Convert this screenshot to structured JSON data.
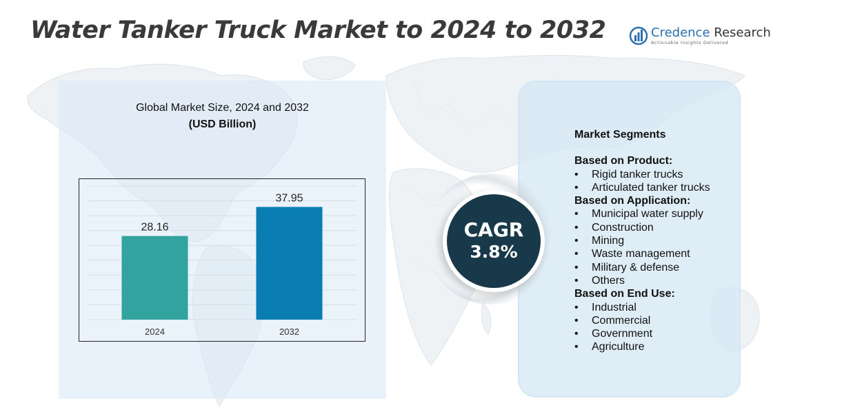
{
  "title": "Water Tanker Truck Market to 2024 to 2032",
  "logo": {
    "name_part1": "Credence",
    "name_part2": "Research",
    "tagline": "Actionable Insights Delivered",
    "icon": "bar-chart-logo-icon"
  },
  "chart_heading": {
    "line1": "Global Market Size,  2024 and 2032",
    "line2": "(USD Billion)"
  },
  "chart_data": {
    "type": "bar",
    "categories": [
      "2024",
      "2032"
    ],
    "values": [
      28.16,
      37.95
    ],
    "value_labels": [
      "28.16",
      "37.95"
    ],
    "bar_colors": [
      "#33a39f",
      "#0a7db3"
    ],
    "ylim": [
      0,
      45
    ],
    "grid": true,
    "xlabel": "",
    "ylabel": ""
  },
  "cagr": {
    "label": "CAGR",
    "value": "3.8%"
  },
  "segments": {
    "title": "Market Segments",
    "groups": [
      {
        "heading": "Based on Product:",
        "items": [
          "Rigid tanker trucks",
          "Articulated tanker trucks"
        ]
      },
      {
        "heading": "Based on Application:",
        "items": [
          "Municipal water supply",
          "Construction",
          "Mining",
          "Waste management",
          "Military & defense",
          "Others"
        ]
      },
      {
        "heading": "Based on End Use:",
        "items": [
          "Industrial",
          "Commercial",
          "Government",
          "Agriculture"
        ]
      }
    ]
  },
  "colors": {
    "title": "#3a3a3a",
    "left_panel": "#d7e8f6",
    "right_panel": "#d6e8f4",
    "cagr_circle": "#17394a",
    "logo_blue": "#2a6fb0"
  }
}
